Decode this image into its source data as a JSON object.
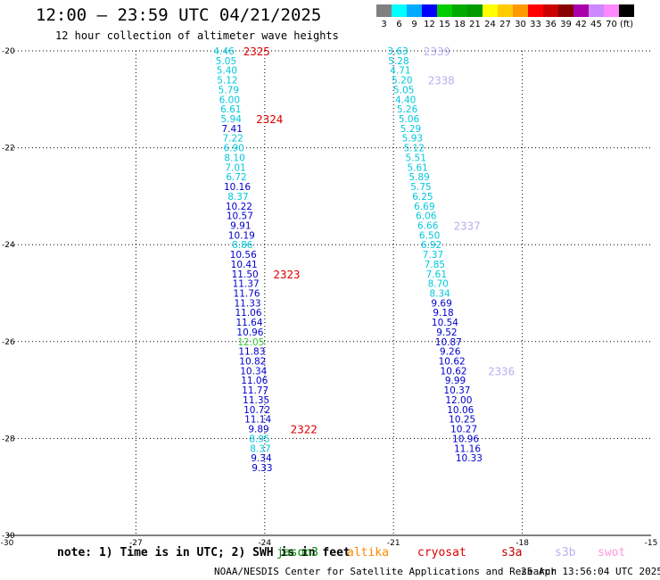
{
  "header": {
    "title": "12:00 – 23:59 UTC 04/21/2025",
    "subtitle": "12 hour collection of altimeter wave heights"
  },
  "colorbar": {
    "unit": "(ft)",
    "items": [
      {
        "label": "3",
        "color": "#808080"
      },
      {
        "label": "6",
        "color": "#00ffff"
      },
      {
        "label": "9",
        "color": "#00aaff"
      },
      {
        "label": "12",
        "color": "#0000ff"
      },
      {
        "label": "15",
        "color": "#00cc00"
      },
      {
        "label": "18",
        "color": "#00aa00"
      },
      {
        "label": "21",
        "color": "#009900"
      },
      {
        "label": "24",
        "color": "#ffff00"
      },
      {
        "label": "27",
        "color": "#ffcc00"
      },
      {
        "label": "30",
        "color": "#ff9900"
      },
      {
        "label": "33",
        "color": "#ff0000"
      },
      {
        "label": "36",
        "color": "#cc0000"
      },
      {
        "label": "39",
        "color": "#880000"
      },
      {
        "label": "42",
        "color": "#aa00aa"
      },
      {
        "label": "45",
        "color": "#cc88ff"
      },
      {
        "label": "70",
        "color": "#ff88ff"
      },
      {
        "label": "",
        "color": "#000000"
      }
    ]
  },
  "chart_data": {
    "type": "scatter",
    "xlim": [
      -30,
      -15
    ],
    "ylim": [
      -30,
      -20
    ],
    "x_ticks": [
      "-30",
      "-27",
      "-24",
      "-21",
      "-18",
      "-15"
    ],
    "y_ticks": [
      "-20",
      "-22",
      "-24",
      "-26",
      "-28",
      "-30"
    ],
    "grid": true,
    "colors": {
      "cyan": "#00c8dc",
      "blue": "#0000cc",
      "green": "#33cc33",
      "red": "#dd0000",
      "lavender": "#b8b0f0"
    },
    "series": [
      {
        "points": [
          {
            "x": -24.95,
            "y": -20.0,
            "label": "4.46",
            "color": "cyan"
          },
          {
            "x": -24.9,
            "y": -20.2,
            "label": "5.05",
            "color": "cyan"
          },
          {
            "x": -24.88,
            "y": -20.4,
            "label": "5.40",
            "color": "cyan"
          },
          {
            "x": -24.87,
            "y": -20.6,
            "label": "5.12",
            "color": "cyan"
          },
          {
            "x": -24.84,
            "y": -20.8,
            "label": "5.79",
            "color": "cyan"
          },
          {
            "x": -24.82,
            "y": -21.0,
            "label": "6.00",
            "color": "cyan"
          },
          {
            "x": -24.79,
            "y": -21.2,
            "label": "6.61",
            "color": "cyan"
          },
          {
            "x": -24.78,
            "y": -21.4,
            "label": "5.94",
            "color": "cyan"
          },
          {
            "x": -24.76,
            "y": -21.6,
            "label": "7.41",
            "color": "blue"
          },
          {
            "x": -24.74,
            "y": -21.8,
            "label": "7.22",
            "color": "cyan"
          },
          {
            "x": -24.72,
            "y": -22.0,
            "label": "6.90",
            "color": "cyan"
          },
          {
            "x": -24.7,
            "y": -22.2,
            "label": "8.10",
            "color": "cyan"
          },
          {
            "x": -24.68,
            "y": -22.4,
            "label": "7.01",
            "color": "cyan"
          },
          {
            "x": -24.66,
            "y": -22.6,
            "label": "6.72",
            "color": "cyan"
          },
          {
            "x": -24.64,
            "y": -22.8,
            "label": "10.16",
            "color": "blue"
          },
          {
            "x": -24.62,
            "y": -23.0,
            "label": "8.37",
            "color": "cyan"
          },
          {
            "x": -24.6,
            "y": -23.2,
            "label": "10.22",
            "color": "blue"
          },
          {
            "x": -24.58,
            "y": -23.4,
            "label": "10.57",
            "color": "blue"
          },
          {
            "x": -24.56,
            "y": -23.6,
            "label": "9.91",
            "color": "blue"
          },
          {
            "x": -24.54,
            "y": -23.8,
            "label": "10.19",
            "color": "blue"
          },
          {
            "x": -24.52,
            "y": -24.0,
            "label": "8.86",
            "color": "cyan"
          },
          {
            "x": -24.5,
            "y": -24.2,
            "label": "10.56",
            "color": "blue"
          },
          {
            "x": -24.48,
            "y": -24.4,
            "label": "10.41",
            "color": "blue"
          },
          {
            "x": -24.46,
            "y": -24.6,
            "label": "11.50",
            "color": "blue"
          },
          {
            "x": -24.44,
            "y": -24.8,
            "label": "11.37",
            "color": "blue"
          },
          {
            "x": -24.42,
            "y": -25.0,
            "label": "11.76",
            "color": "blue"
          },
          {
            "x": -24.4,
            "y": -25.2,
            "label": "11.33",
            "color": "blue"
          },
          {
            "x": -24.38,
            "y": -25.4,
            "label": "11.06",
            "color": "blue"
          },
          {
            "x": -24.36,
            "y": -25.6,
            "label": "11.64",
            "color": "blue"
          },
          {
            "x": -24.34,
            "y": -25.8,
            "label": "10.96",
            "color": "blue"
          },
          {
            "x": -24.32,
            "y": -26.0,
            "label": "12.05",
            "color": "green"
          },
          {
            "x": -24.3,
            "y": -26.2,
            "label": "11.83",
            "color": "blue"
          },
          {
            "x": -24.28,
            "y": -26.4,
            "label": "10.82",
            "color": "blue"
          },
          {
            "x": -24.26,
            "y": -26.6,
            "label": "10.34",
            "color": "blue"
          },
          {
            "x": -24.24,
            "y": -26.8,
            "label": "11.06",
            "color": "blue"
          },
          {
            "x": -24.22,
            "y": -27.0,
            "label": "11.77",
            "color": "blue"
          },
          {
            "x": -24.2,
            "y": -27.2,
            "label": "11.35",
            "color": "blue"
          },
          {
            "x": -24.18,
            "y": -27.4,
            "label": "10.72",
            "color": "blue"
          },
          {
            "x": -24.16,
            "y": -27.6,
            "label": "11.14",
            "color": "blue"
          },
          {
            "x": -24.14,
            "y": -27.8,
            "label": "9.89",
            "color": "blue"
          },
          {
            "x": -24.12,
            "y": -28.0,
            "label": "8.95",
            "color": "cyan"
          },
          {
            "x": -24.1,
            "y": -28.2,
            "label": "8.37",
            "color": "cyan"
          },
          {
            "x": -24.08,
            "y": -28.4,
            "label": "9.34",
            "color": "blue"
          },
          {
            "x": -24.06,
            "y": -28.6,
            "label": "9.33",
            "color": "blue"
          }
        ]
      },
      {
        "points": [
          {
            "x": -20.9,
            "y": -20.0,
            "label": "3.63",
            "color": "cyan"
          },
          {
            "x": -20.88,
            "y": -20.2,
            "label": "5.28",
            "color": "cyan"
          },
          {
            "x": -20.84,
            "y": -20.4,
            "label": "4.71",
            "color": "cyan"
          },
          {
            "x": -20.8,
            "y": -20.6,
            "label": "5.20",
            "color": "cyan"
          },
          {
            "x": -20.76,
            "y": -20.8,
            "label": "5.05",
            "color": "cyan"
          },
          {
            "x": -20.72,
            "y": -21.0,
            "label": "4.40",
            "color": "cyan"
          },
          {
            "x": -20.68,
            "y": -21.2,
            "label": "5.26",
            "color": "cyan"
          },
          {
            "x": -20.64,
            "y": -21.4,
            "label": "5.06",
            "color": "cyan"
          },
          {
            "x": -20.6,
            "y": -21.6,
            "label": "5.29",
            "color": "cyan"
          },
          {
            "x": -20.56,
            "y": -21.8,
            "label": "5.93",
            "color": "cyan"
          },
          {
            "x": -20.52,
            "y": -22.0,
            "label": "5.12",
            "color": "cyan"
          },
          {
            "x": -20.48,
            "y": -22.2,
            "label": "5.51",
            "color": "cyan"
          },
          {
            "x": -20.44,
            "y": -22.4,
            "label": "5.61",
            "color": "cyan"
          },
          {
            "x": -20.4,
            "y": -22.6,
            "label": "5.89",
            "color": "cyan"
          },
          {
            "x": -20.36,
            "y": -22.8,
            "label": "5.75",
            "color": "cyan"
          },
          {
            "x": -20.32,
            "y": -23.0,
            "label": "6.25",
            "color": "cyan"
          },
          {
            "x": -20.28,
            "y": -23.2,
            "label": "6.69",
            "color": "cyan"
          },
          {
            "x": -20.24,
            "y": -23.4,
            "label": "6.06",
            "color": "cyan"
          },
          {
            "x": -20.2,
            "y": -23.6,
            "label": "6.66",
            "color": "cyan"
          },
          {
            "x": -20.16,
            "y": -23.8,
            "label": "6.50",
            "color": "cyan"
          },
          {
            "x": -20.12,
            "y": -24.0,
            "label": "6.92",
            "color": "cyan"
          },
          {
            "x": -20.08,
            "y": -24.2,
            "label": "7.37",
            "color": "cyan"
          },
          {
            "x": -20.04,
            "y": -24.4,
            "label": "7.85",
            "color": "cyan"
          },
          {
            "x": -20.0,
            "y": -24.6,
            "label": "7.61",
            "color": "cyan"
          },
          {
            "x": -19.96,
            "y": -24.8,
            "label": "8.70",
            "color": "cyan"
          },
          {
            "x": -19.92,
            "y": -25.0,
            "label": "8.34",
            "color": "cyan"
          },
          {
            "x": -19.88,
            "y": -25.2,
            "label": "9.69",
            "color": "blue"
          },
          {
            "x": -19.84,
            "y": -25.4,
            "label": "9.18",
            "color": "blue"
          },
          {
            "x": -19.8,
            "y": -25.6,
            "label": "10.54",
            "color": "blue"
          },
          {
            "x": -19.76,
            "y": -25.8,
            "label": "9.52",
            "color": "blue"
          },
          {
            "x": -19.72,
            "y": -26.0,
            "label": "10.87",
            "color": "blue"
          },
          {
            "x": -19.68,
            "y": -26.2,
            "label": "9.26",
            "color": "blue"
          },
          {
            "x": -19.64,
            "y": -26.4,
            "label": "10.62",
            "color": "blue"
          },
          {
            "x": -19.6,
            "y": -26.6,
            "label": "10.62",
            "color": "blue"
          },
          {
            "x": -19.56,
            "y": -26.8,
            "label": "9.99",
            "color": "blue"
          },
          {
            "x": -19.52,
            "y": -27.0,
            "label": "10.37",
            "color": "blue"
          },
          {
            "x": -19.48,
            "y": -27.2,
            "label": "12.00",
            "color": "blue"
          },
          {
            "x": -19.44,
            "y": -27.4,
            "label": "10.06",
            "color": "blue"
          },
          {
            "x": -19.4,
            "y": -27.6,
            "label": "10.25",
            "color": "blue"
          },
          {
            "x": -19.36,
            "y": -27.8,
            "label": "10.27",
            "color": "blue"
          },
          {
            "x": -19.32,
            "y": -28.0,
            "label": "10.96",
            "color": "blue"
          },
          {
            "x": -19.28,
            "y": -28.2,
            "label": "11.16",
            "color": "blue"
          },
          {
            "x": -19.24,
            "y": -28.4,
            "label": "10.33",
            "color": "blue"
          }
        ]
      }
    ],
    "annotations": [
      {
        "text": "2325",
        "x": -24.5,
        "y": -20.0,
        "color": "red"
      },
      {
        "text": "2324",
        "x": -24.2,
        "y": -21.4,
        "color": "red"
      },
      {
        "text": "2323",
        "x": -23.8,
        "y": -24.6,
        "color": "red"
      },
      {
        "text": "2322",
        "x": -23.4,
        "y": -27.8,
        "color": "red"
      },
      {
        "text": "2339",
        "x": -20.3,
        "y": -20.0,
        "color": "lavender"
      },
      {
        "text": "2338",
        "x": -20.2,
        "y": -20.6,
        "color": "lavender"
      },
      {
        "text": "2337",
        "x": -19.6,
        "y": -23.6,
        "color": "lavender"
      },
      {
        "text": "2336",
        "x": -18.8,
        "y": -26.6,
        "color": "lavender"
      }
    ]
  },
  "footer": {
    "note": "note: 1) Time is in UTC; 2) SWH is in feet",
    "legend": [
      {
        "label": "jason3",
        "color": "#008800"
      },
      {
        "label": "altika",
        "color": "#ff8800"
      },
      {
        "label": "cryosat",
        "color": "#dd0000"
      },
      {
        "label": "s3a",
        "color": "#bb0000"
      },
      {
        "label": "s3b",
        "color": "#b8b0f0"
      },
      {
        "label": "swot",
        "color": "#ff99dd"
      }
    ],
    "credit": "NOAA/NESDIS Center for Satellite Applications and Research",
    "timestamp": "25 Apr 13:56:04 UTC 2025"
  }
}
